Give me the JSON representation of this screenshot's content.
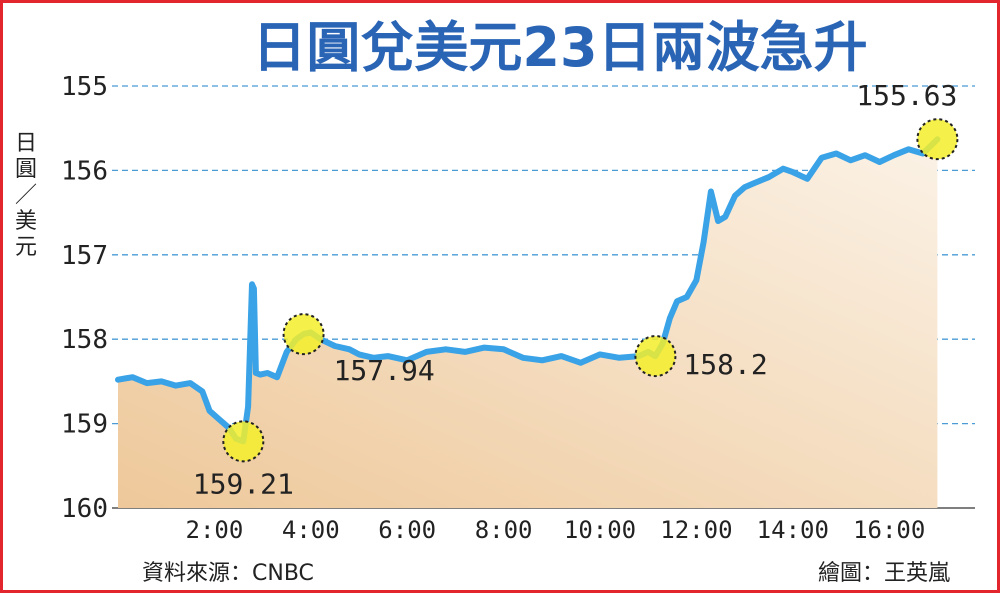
{
  "colors": {
    "frame": "#e3262d",
    "title": "#2a64b5",
    "line": "#3aa2e6",
    "grid": "#4a9bd6",
    "area_top": "#fbf2e6",
    "area_bottom": "#eec89a",
    "highlight": "#f5ee2a",
    "text": "#222222"
  },
  "chart_data": {
    "type": "line",
    "title": "日圓兌美元23日兩波急升",
    "ylabel": "日圓／美元",
    "ylabel_chars": [
      "日",
      "圓",
      "／",
      "美",
      "元"
    ],
    "ylim": [
      160,
      155
    ],
    "y_reversed": true,
    "grid": true,
    "x_ticks": [
      "2:00",
      "4:00",
      "6:00",
      "8:00",
      "10:00",
      "12:00",
      "14:00",
      "16:00"
    ],
    "x_tick_hours": [
      2,
      4,
      6,
      8,
      10,
      12,
      14,
      16
    ],
    "y_ticks": [
      "155",
      "156",
      "157",
      "158",
      "159",
      "160"
    ],
    "y_tick_values": [
      155,
      156,
      157,
      158,
      159,
      160
    ],
    "series": [
      {
        "x": [
          0.0,
          0.3,
          0.6,
          0.9,
          1.2,
          1.5,
          1.75,
          1.9,
          2.1,
          2.3,
          2.45,
          2.6,
          2.7,
          2.78,
          2.82,
          2.86,
          2.95,
          3.1,
          3.3,
          3.5,
          3.7,
          3.85,
          4.0,
          4.2,
          4.5,
          4.8,
          5.0,
          5.3,
          5.6,
          6.0,
          6.4,
          6.8,
          7.2,
          7.6,
          8.0,
          8.4,
          8.8,
          9.2,
          9.6,
          10.0,
          10.4,
          10.8,
          11.0,
          11.15,
          11.3,
          11.45,
          11.6,
          11.8,
          12.0,
          12.15,
          12.3,
          12.45,
          12.6,
          12.8,
          13.0,
          13.2,
          13.5,
          13.8,
          14.0,
          14.3,
          14.6,
          14.9,
          15.2,
          15.5,
          15.8,
          16.1,
          16.4,
          16.7,
          17.0
        ],
        "values": [
          158.48,
          158.45,
          158.52,
          158.5,
          158.55,
          158.52,
          158.62,
          158.85,
          158.95,
          159.05,
          159.18,
          159.21,
          158.8,
          157.35,
          157.4,
          158.4,
          158.42,
          158.4,
          158.45,
          158.15,
          158.0,
          157.94,
          157.92,
          158.0,
          158.08,
          158.12,
          158.18,
          158.22,
          158.2,
          158.25,
          158.15,
          158.12,
          158.15,
          158.1,
          158.12,
          158.22,
          158.25,
          158.2,
          158.28,
          158.18,
          158.22,
          158.2,
          158.15,
          158.2,
          158.05,
          157.75,
          157.55,
          157.5,
          157.3,
          156.85,
          156.25,
          156.6,
          156.55,
          156.3,
          156.2,
          156.15,
          156.08,
          155.98,
          156.02,
          156.1,
          155.85,
          155.8,
          155.88,
          155.82,
          155.9,
          155.82,
          155.75,
          155.8,
          155.63
        ]
      }
    ],
    "annotations": [
      {
        "label": "159.21",
        "x": 2.6,
        "y": 159.21,
        "pos": "below"
      },
      {
        "label": "157.94",
        "x": 3.85,
        "y": 157.94,
        "pos": "right-below"
      },
      {
        "label": "158.2",
        "x": 11.15,
        "y": 158.2,
        "pos": "right"
      },
      {
        "label": "155.63",
        "x": 17.0,
        "y": 155.63,
        "pos": "above"
      }
    ]
  },
  "footer": {
    "source": "資料來源：CNBC",
    "credit": "繪圖：王英嵐"
  }
}
